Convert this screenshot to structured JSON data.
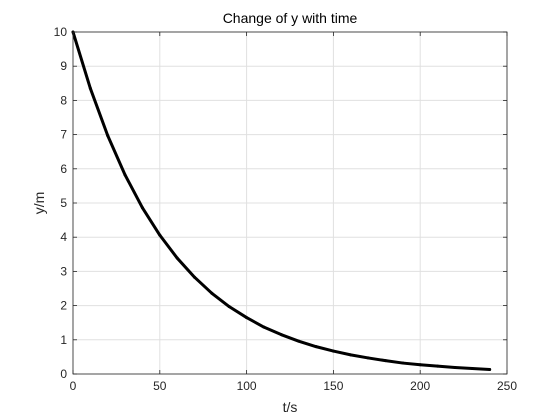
{
  "chart_data": {
    "type": "line",
    "title": "Change of y with time",
    "xlabel": "t/s",
    "ylabel": "y/m",
    "xlim": [
      0,
      250
    ],
    "ylim": [
      0,
      10
    ],
    "xticks": [
      0,
      50,
      100,
      150,
      200,
      250
    ],
    "yticks": [
      0,
      1,
      2,
      3,
      4,
      5,
      6,
      7,
      8,
      9,
      10
    ],
    "grid": true,
    "series": [
      {
        "color": "#000000",
        "x": [
          0,
          10,
          20,
          30,
          40,
          50,
          60,
          70,
          80,
          90,
          100,
          110,
          120,
          130,
          140,
          150,
          160,
          170,
          180,
          190,
          200,
          210,
          220,
          230,
          240
        ],
        "y": [
          10.0,
          8.35,
          6.97,
          5.82,
          4.86,
          4.06,
          3.39,
          2.83,
          2.36,
          1.97,
          1.65,
          1.37,
          1.15,
          0.96,
          0.8,
          0.67,
          0.56,
          0.47,
          0.39,
          0.32,
          0.27,
          0.23,
          0.19,
          0.16,
          0.13
        ]
      }
    ]
  }
}
